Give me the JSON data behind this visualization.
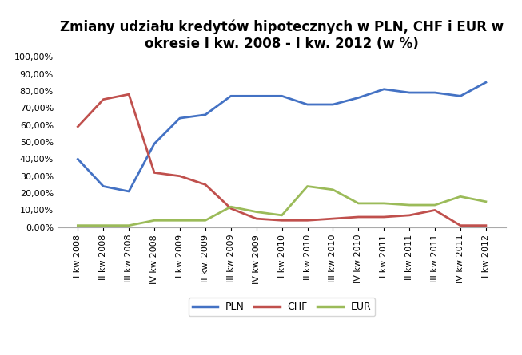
{
  "title": "Zmiany udziału kredytów hipotecznych w PLN, CHF i EUR w\nokresie I kw. 2008 - I kw. 2012 (w %)",
  "categories": [
    "I kw 2008",
    "II kw 2008",
    "III kw 2008",
    "IV kw 2008",
    "I kw 2009",
    "II kw. 2009",
    "III kw 2009",
    "IV kw 2009",
    "I kw 2010",
    "II kw 2010",
    "III kw 2010",
    "IV kw 2010",
    "I kw 2011",
    "II kw 2011",
    "III kw 2011",
    "IV kw 2011",
    "I kw 2012"
  ],
  "PLN": [
    0.4,
    0.24,
    0.21,
    0.49,
    0.64,
    0.66,
    0.77,
    0.77,
    0.77,
    0.72,
    0.72,
    0.76,
    0.81,
    0.79,
    0.79,
    0.77,
    0.85
  ],
  "CHF": [
    0.59,
    0.75,
    0.78,
    0.32,
    0.3,
    0.25,
    0.11,
    0.05,
    0.04,
    0.04,
    0.05,
    0.06,
    0.06,
    0.07,
    0.1,
    0.01,
    0.01
  ],
  "EUR": [
    0.01,
    0.01,
    0.01,
    0.04,
    0.04,
    0.04,
    0.12,
    0.09,
    0.07,
    0.24,
    0.22,
    0.14,
    0.14,
    0.13,
    0.13,
    0.18,
    0.15
  ],
  "PLN_color": "#4472C4",
  "CHF_color": "#C0504D",
  "EUR_color": "#9BBB59",
  "ylim": [
    0.0,
    1.0
  ],
  "yticks": [
    0.0,
    0.1,
    0.2,
    0.3,
    0.4,
    0.5,
    0.6,
    0.7,
    0.8,
    0.9,
    1.0
  ],
  "title_fontsize": 12,
  "tick_fontsize": 8,
  "legend_fontsize": 9,
  "linewidth": 2.0,
  "background_color": "#FFFFFF"
}
